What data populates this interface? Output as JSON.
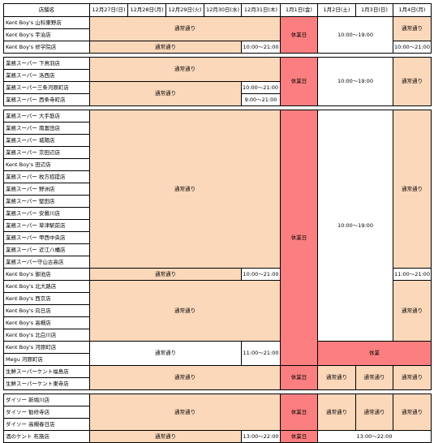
{
  "header": {
    "store": "店舗名",
    "d1227": "12月27日(日)",
    "d1228": "12月28日(月)",
    "d1229": "12月29日(火)",
    "d1230": "12月30日(水)",
    "d1231": "12月31日(木)",
    "d0101": "1月1日(金)",
    "d0102": "1月2日(土)",
    "d0103": "1月3日(日)",
    "d0104": "1月4日(月)"
  },
  "stores": [
    "Kent Boy's  山科東野店",
    "Kent Boy's  宇治店",
    "Kent Boy's  修学院店",
    "業務スーパー  下鳥羽店",
    "業務スーパー  洛西店",
    "業務スーパー三条河原町店",
    "業務スーパー  西条寺町店",
    "業務スーパー  大手筋店",
    "業務スーパー  南富田店",
    "業務スーパー  城陽店",
    "業務スーパー  京田辺店",
    "Kent Boy's  田辺店",
    "業務スーパー  枚方招提店",
    "業務スーパー  野洲店",
    "業務スーパー  堅田店",
    "業務スーパー  安曇川店",
    "業務スーパー  草津駅前店",
    "業務スーパー  甲西中央店",
    "業務スーパー  近江八幡店",
    "業務スーパー守山古高店",
    "Kent Boy's  御池店",
    "Kent Boy's  北大路店",
    "Kent Boy's  西京店",
    "Kent Boy's  向日店",
    "Kent Boy's  高槻店",
    "Kent Boy's  北白川店",
    "Kent Boy's  河原町店",
    "Megu  河原町店",
    "生鮮スーパーケント福島店",
    "生鮮スーパーケント東寺店",
    "ダイソー  新堀川店",
    "ダイソー  勧修寺店",
    "ダイソー  高槻春日店",
    "酒のケント  布施店"
  ],
  "values": {
    "normal": "通常通り",
    "closed": "休業日",
    "closed_short": "休業",
    "h10_19": "10:00～19:00",
    "h10_21": "10:00～21:00",
    "h9_21": "9:00～21:00",
    "h11_21": "11:00～21:00",
    "h13_22": "13:00～22:00"
  },
  "colors": {
    "normal": "#fcd8bb",
    "closed": "#fb7f80",
    "open": "#ffffff"
  }
}
